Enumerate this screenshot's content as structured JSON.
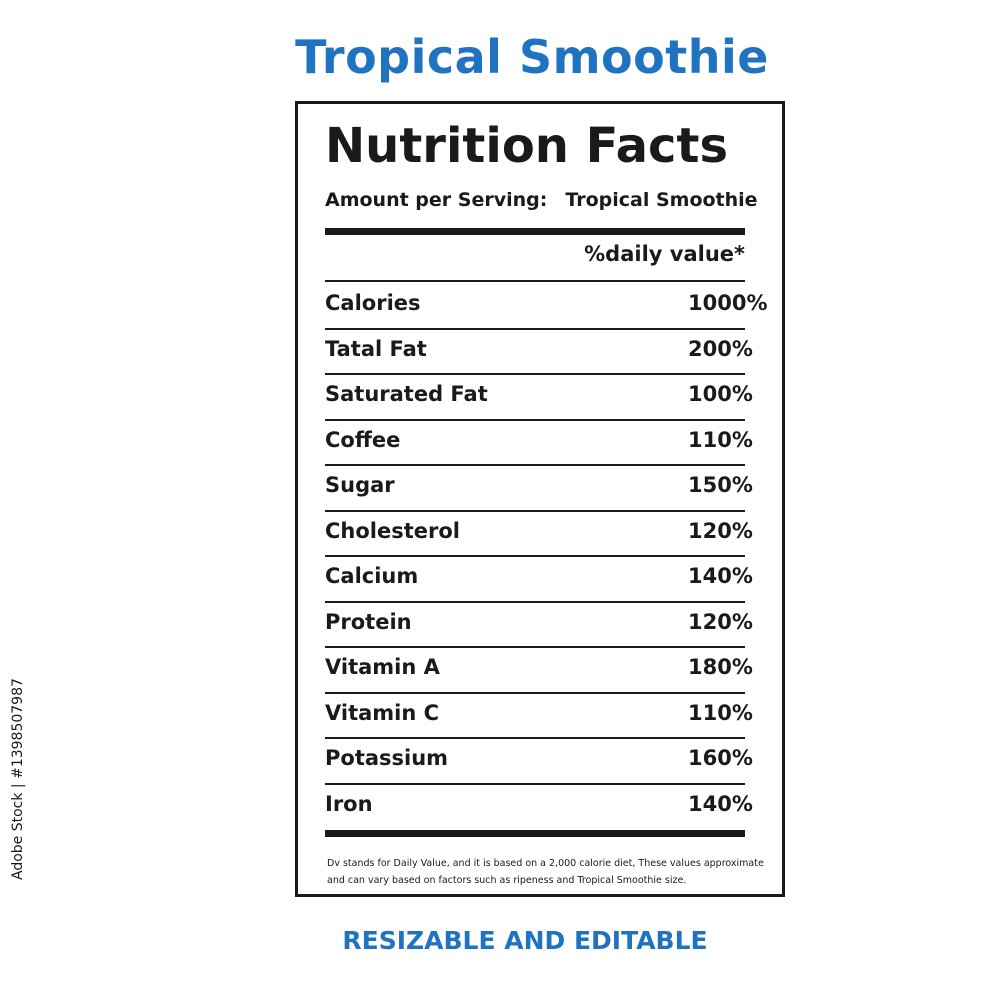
{
  "header": {
    "title": "Tropical Smoothie"
  },
  "label": {
    "heading": "Nutrition Facts",
    "serving_label": "Amount per Serving:",
    "serving_value": "Tropical Smoothie",
    "dv_header": "%daily value*",
    "rows": [
      {
        "name": "Calories",
        "value": "1000%"
      },
      {
        "name": "Tatal Fat",
        "value": "200%"
      },
      {
        "name": "Saturated Fat",
        "value": "100%"
      },
      {
        "name": "Coffee",
        "value": "110%"
      },
      {
        "name": "Sugar",
        "value": "150%"
      },
      {
        "name": "Cholesterol",
        "value": "120%"
      },
      {
        "name": "Calcium",
        "value": "140%"
      },
      {
        "name": "Protein",
        "value": "120%"
      },
      {
        "name": "Vitamin A",
        "value": "180%"
      },
      {
        "name": "Vitamin C",
        "value": "110%"
      },
      {
        "name": "Potassium",
        "value": "160%"
      },
      {
        "name": "Iron",
        "value": "140%"
      }
    ],
    "footnote_line1": "Dv stands for Daily Value, and it is based on a 2,000 calorie diet, These values approximate",
    "footnote_line2": "and can vary based on factors such as ripeness and Tropical Smoothie size."
  },
  "footer": {
    "tagline": "RESIZABLE AND EDITABLE"
  },
  "watermark": {
    "stock_id": "Adobe Stock | #1398507987"
  },
  "colors": {
    "accent": "#1f73c0",
    "ink": "#1a1a1a",
    "background": "#ffffff"
  }
}
